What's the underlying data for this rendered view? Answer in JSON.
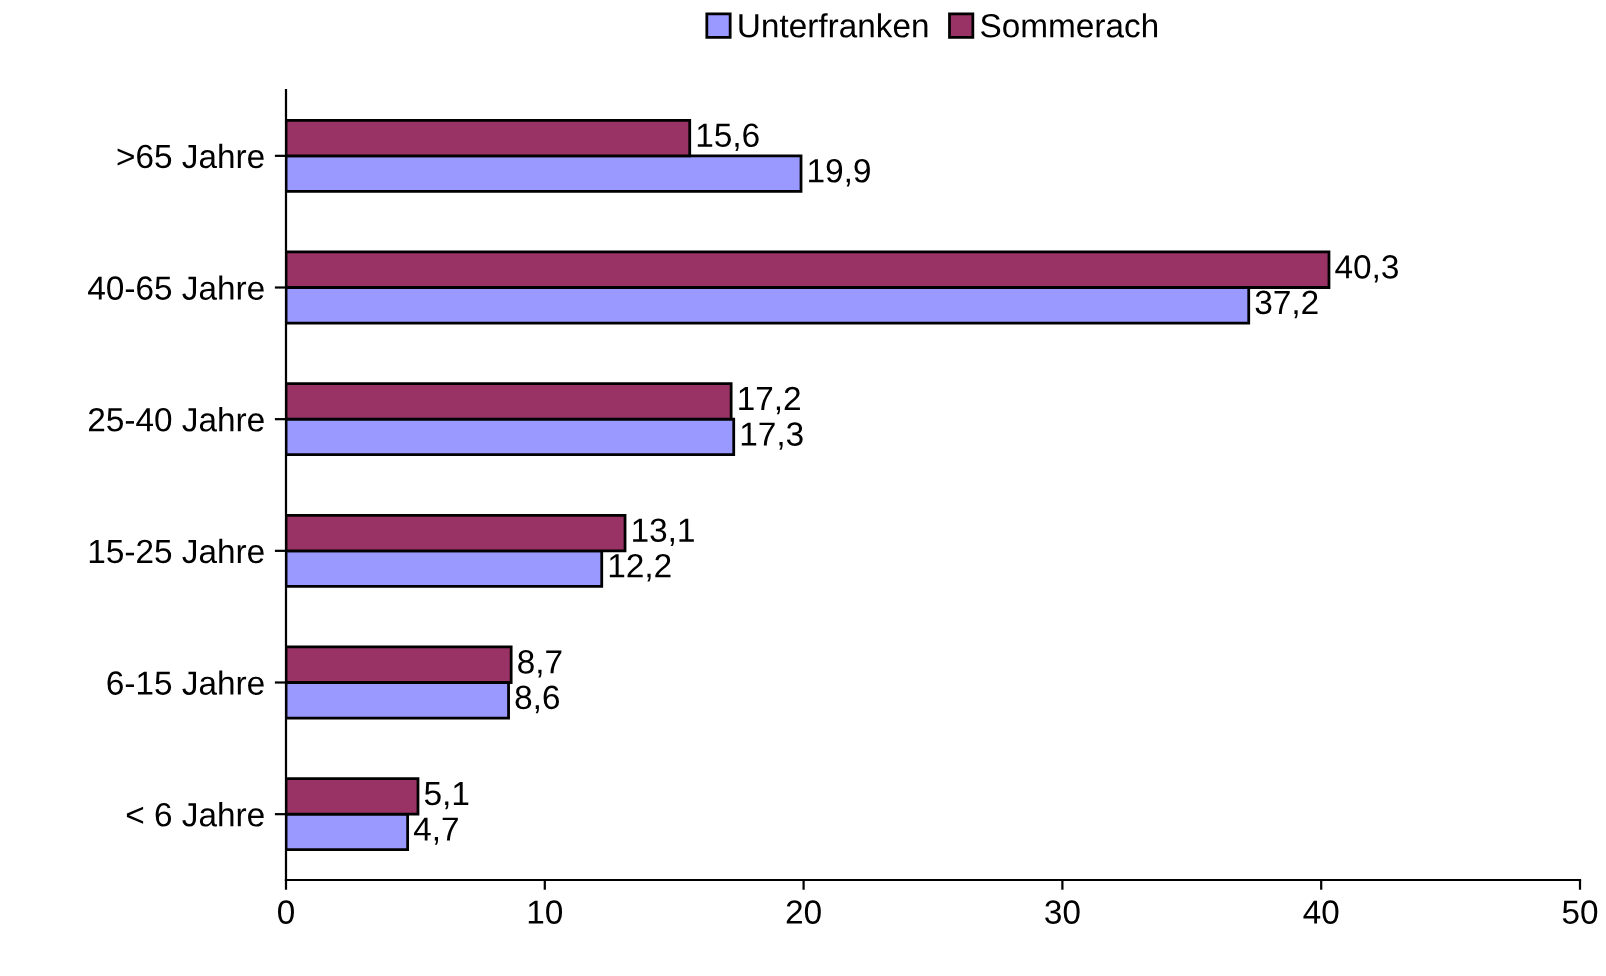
{
  "chart_data": {
    "type": "bar",
    "orientation": "horizontal",
    "categories": [
      ">65 Jahre",
      "40-65 Jahre",
      "25-40 Jahre",
      "15-25 Jahre",
      "6-15 Jahre",
      "< 6 Jahre"
    ],
    "series": [
      {
        "name": "Unterfranken",
        "color": "#9999ff",
        "values": [
          19.9,
          37.2,
          17.3,
          12.2,
          8.6,
          4.7
        ],
        "value_labels": [
          "19,9",
          "37,2",
          "17,3",
          "12,2",
          "8,6",
          "4,7"
        ]
      },
      {
        "name": "Sommerach",
        "color": "#993366",
        "values": [
          15.6,
          40.3,
          17.2,
          13.1,
          8.7,
          5.1
        ],
        "value_labels": [
          "15,6",
          "40,3",
          "17,2",
          "13,1",
          "8,7",
          "5,1"
        ]
      }
    ],
    "xlim": [
      0,
      50
    ],
    "xticks": [
      0,
      10,
      20,
      30,
      40,
      50
    ],
    "grid": false,
    "legend": "top"
  }
}
